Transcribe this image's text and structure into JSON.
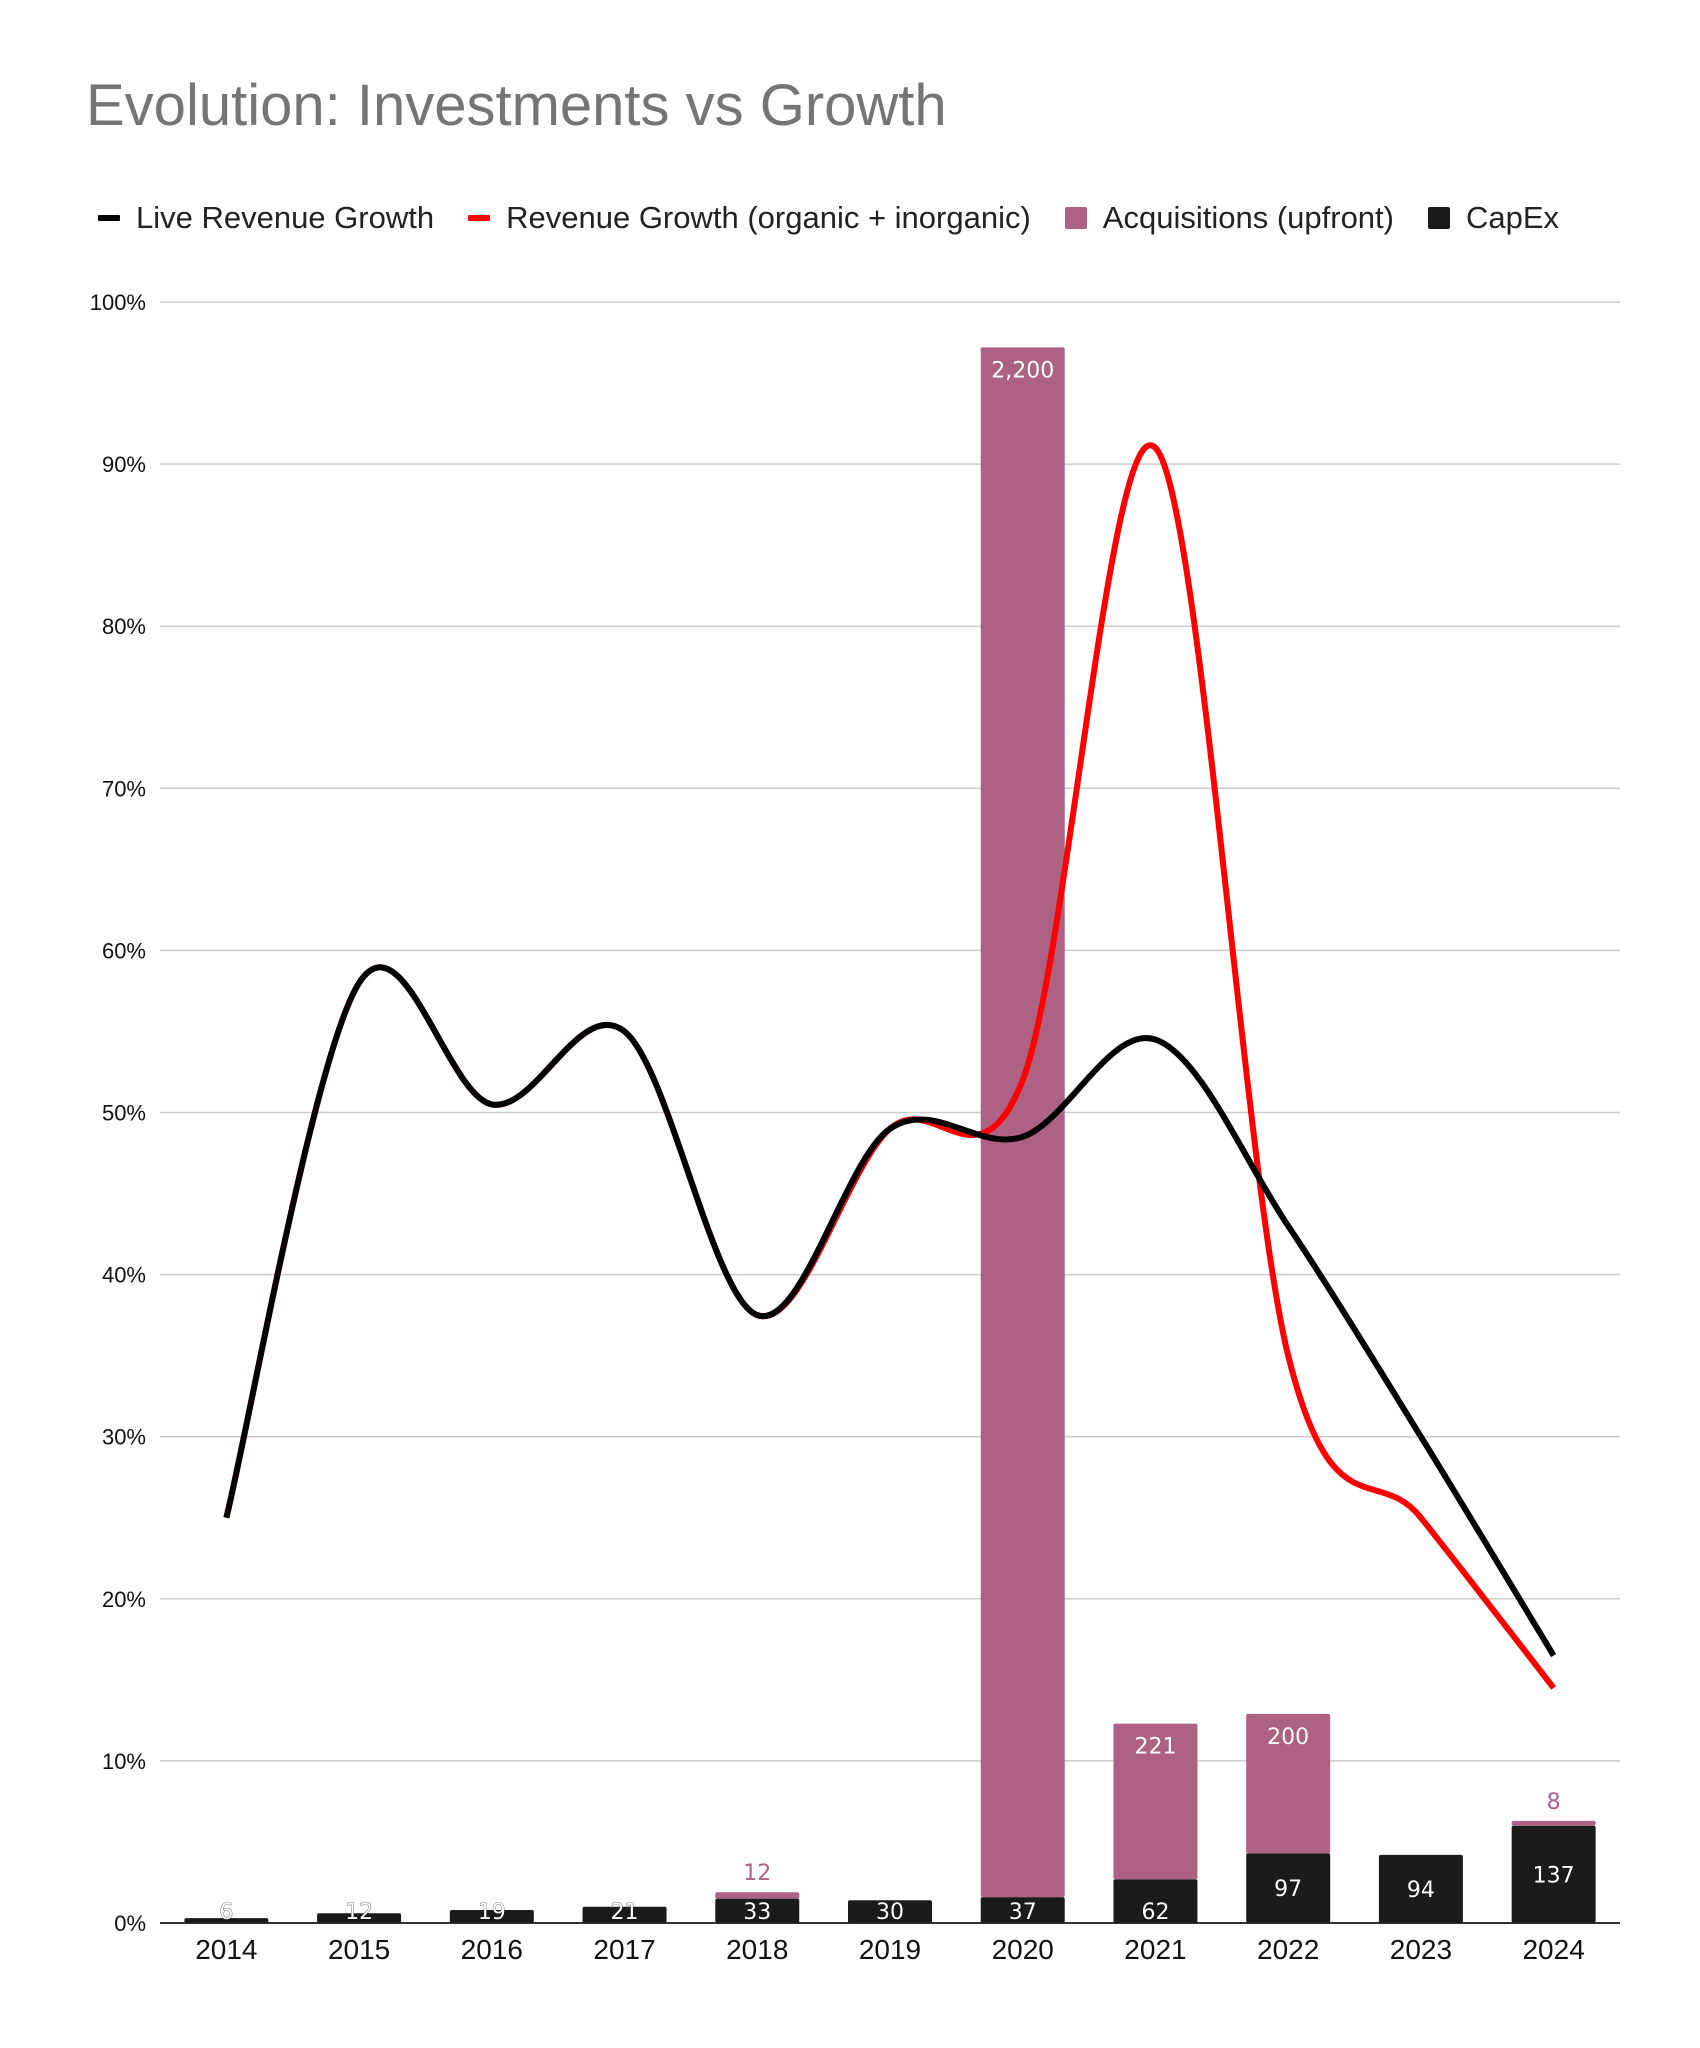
{
  "chart_data": {
    "type": "bar",
    "title": "Evolution: Investments vs Growth",
    "categories": [
      "2014",
      "2015",
      "2016",
      "2017",
      "2018",
      "2019",
      "2020",
      "2021",
      "2022",
      "2023",
      "2024"
    ],
    "y_percent_ticks": [
      "0%",
      "10%",
      "20%",
      "30%",
      "40%",
      "50%",
      "60%",
      "70%",
      "80%",
      "90%",
      "100%"
    ],
    "ylim": [
      0,
      100
    ],
    "grid": true,
    "legend_position": "top",
    "bar_series": [
      {
        "name": "CapEx",
        "color": "#1b1b1b",
        "values": [
          6,
          12,
          19,
          21,
          33,
          30,
          37,
          62,
          97,
          94,
          137
        ],
        "bar_height_percent": [
          0.3,
          0.6,
          0.8,
          1.0,
          1.5,
          1.4,
          1.6,
          2.7,
          4.3,
          4.2,
          6.0
        ],
        "labels": [
          "6",
          "12",
          "19",
          "21",
          "33",
          "30",
          "37",
          "62",
          "97",
          "94",
          "137"
        ]
      },
      {
        "name": "Acquisitions (upfront)",
        "color": "#ad6284",
        "values": [
          0,
          0,
          0,
          0,
          12,
          0,
          2200,
          221,
          200,
          0,
          8
        ],
        "bar_height_percent": [
          0,
          0,
          0,
          0,
          0.4,
          0,
          95.6,
          9.6,
          8.6,
          0,
          0.3
        ],
        "labels": [
          "",
          "",
          "",
          "",
          "12",
          "",
          "2,200",
          "221",
          "200",
          "",
          "8"
        ]
      }
    ],
    "line_series": [
      {
        "name": "Live Revenue Growth",
        "color": "#000000",
        "values": [
          25,
          58,
          50.5,
          55,
          37.5,
          49,
          48.5,
          54.5,
          43,
          30,
          16.5
        ]
      },
      {
        "name": "Revenue Growth (organic + inorganic)",
        "color": "#ff0000",
        "values": [
          25,
          58,
          50.5,
          55,
          37.5,
          49,
          52,
          91,
          35,
          25,
          14.5
        ]
      }
    ]
  },
  "legend": [
    {
      "label": "Live Revenue Growth",
      "color": "#000000",
      "shape": "line"
    },
    {
      "label": "Revenue Growth (organic + inorganic)",
      "color": "#ff0000",
      "shape": "line"
    },
    {
      "label": "Acquisitions (upfront)",
      "color": "#ad6284",
      "shape": "box"
    },
    {
      "label": "CapEx",
      "color": "#1b1b1b",
      "shape": "box"
    }
  ]
}
